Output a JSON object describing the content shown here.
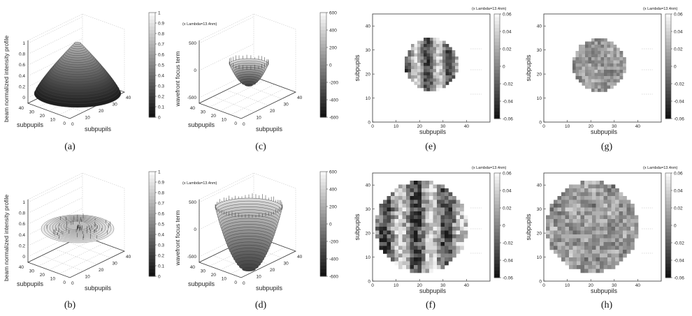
{
  "panels": [
    {
      "id": "a",
      "caption": "(a)",
      "kind": "surface3d",
      "zlabel": "beam normalized intensity profile",
      "xlabel": "subpupils",
      "ylabel": "subpupils",
      "unit_note": "",
      "zticks": [
        "0",
        "0.2",
        "0.4",
        "0.6",
        "0.8",
        "1"
      ],
      "xticks": [
        "0",
        "10",
        "20",
        "30",
        "40"
      ],
      "yticks": [
        "40",
        "30",
        "20",
        "10",
        "0"
      ],
      "cbar_ticks": [
        "1",
        "0.9",
        "0.8",
        "0.7",
        "0.6",
        "0.5",
        "0.4",
        "0.3",
        "0.2",
        "0.1",
        "0"
      ]
    },
    {
      "id": "b",
      "caption": "(b)",
      "kind": "surface3d",
      "zlabel": "beam normalized intensity profile",
      "xlabel": "subpupils",
      "ylabel": "subpupils",
      "unit_note": "",
      "zticks": [
        "0",
        "0.2",
        "0.4",
        "0.6",
        "0.8",
        "1"
      ],
      "xticks": [
        "0",
        "10",
        "20",
        "30",
        "40"
      ],
      "yticks": [
        "40",
        "30",
        "20",
        "10",
        "0"
      ],
      "cbar_ticks": [
        "1",
        "0.9",
        "0.8",
        "0.7",
        "0.6",
        "0.5",
        "0.4",
        "0.3",
        "0.2",
        "0.1",
        "0"
      ]
    },
    {
      "id": "c",
      "caption": "(c)",
      "kind": "surface3d",
      "zlabel": "wavefront focus term",
      "xlabel": "subpupils",
      "ylabel": "subpupils",
      "unit_note": "(x Lambda=13.4nm)",
      "unit_note2": "(x Lambda=13.4nm)",
      "zticks": [
        "-500",
        "0",
        "500"
      ],
      "xticks": [
        "0",
        "10",
        "20",
        "30",
        "40"
      ],
      "yticks": [
        "40",
        "30",
        "20",
        "10",
        "0"
      ],
      "cbar_ticks": [
        "600",
        "400",
        "200",
        "0",
        "-200",
        "-400",
        "-600"
      ]
    },
    {
      "id": "d",
      "caption": "(d)",
      "kind": "surface3d",
      "zlabel": "wavefront focus term",
      "xlabel": "subpupils",
      "ylabel": "subpupils",
      "unit_note": "(x Lambda=13.4nm)",
      "unit_note2": "(x Lambda=13.4nm)",
      "zticks": [
        "-500",
        "0",
        "500"
      ],
      "xticks": [
        "0",
        "10",
        "20",
        "30",
        "40"
      ],
      "yticks": [
        "40",
        "30",
        "20",
        "10",
        "0"
      ],
      "cbar_ticks": [
        "600",
        "400",
        "200",
        "0",
        "-200",
        "-400",
        "-600"
      ]
    },
    {
      "id": "e",
      "caption": "(e)",
      "kind": "map2d",
      "xlabel": "subpupils",
      "ylabel": "subpupils",
      "unit_note": "(x Lambda=13.4nm)",
      "xticks": [
        "0",
        "10",
        "20",
        "30",
        "40"
      ],
      "yticks": [
        "40",
        "30",
        "20",
        "10",
        "0"
      ],
      "cbar_ticks": [
        "0.06",
        "0.04",
        "0.02",
        "0",
        "-0.02",
        "-0.04",
        "-0.06"
      ]
    },
    {
      "id": "f",
      "caption": "(f)",
      "kind": "map2d",
      "xlabel": "subpupils",
      "ylabel": "subpupils",
      "unit_note": "(x Lambda=13.4nm)",
      "xticks": [
        "0",
        "10",
        "20",
        "30",
        "40"
      ],
      "yticks": [
        "40",
        "30",
        "20",
        "10",
        "0"
      ],
      "cbar_ticks": [
        "0.06",
        "0.04",
        "0.02",
        "0",
        "-0.02",
        "-0.04",
        "-0.06"
      ]
    },
    {
      "id": "g",
      "caption": "(g)",
      "kind": "map2d",
      "xlabel": "subpupils",
      "ylabel": "subpupils",
      "unit_note": "(x Lambda=13.4nm)",
      "xticks": [
        "0",
        "10",
        "20",
        "30",
        "40"
      ],
      "yticks": [
        "40",
        "30",
        "20",
        "10",
        "0"
      ],
      "cbar_ticks": [
        "0.06",
        "0.04",
        "0.02",
        "0",
        "-0.02",
        "-0.04",
        "-0.06"
      ]
    },
    {
      "id": "h",
      "caption": "(h)",
      "kind": "map2d",
      "xlabel": "subpupils",
      "ylabel": "subpupils",
      "unit_note": "(x Lambda=13.4nm)",
      "xticks": [
        "0",
        "10",
        "20",
        "30",
        "40"
      ],
      "yticks": [
        "40",
        "30",
        "20",
        "10",
        "0"
      ],
      "cbar_ticks": [
        "0.06",
        "0.04",
        "0.02",
        "0",
        "-0.02",
        "-0.04",
        "-0.06"
      ]
    }
  ],
  "colors": {
    "colormap_light": "#f2f2f2",
    "colormap_dark": "#1a1a1a",
    "mesh": "#555555"
  }
}
